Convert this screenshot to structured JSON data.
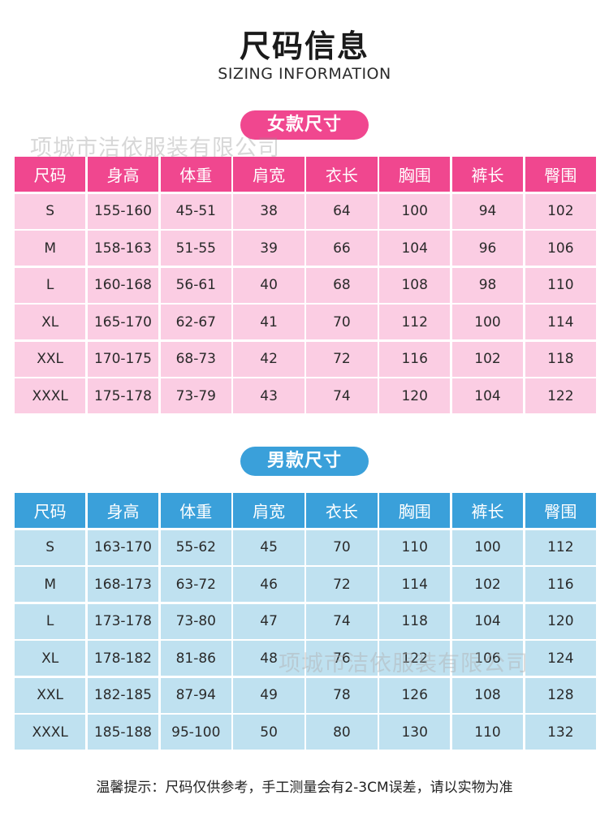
{
  "title": "尺码信息",
  "subtitle": "SIZING INFORMATION",
  "watermark": "项城市洁依服装有限公司",
  "colors": {
    "women_header": "#f0478f",
    "women_body": "#fbcde3",
    "men_header": "#3aa0da",
    "men_body": "#bfe1f0"
  },
  "women": {
    "label": "女款尺寸",
    "headers": [
      "尺码",
      "身高",
      "体重",
      "肩宽",
      "衣长",
      "胸围",
      "裤长",
      "臀围"
    ],
    "rows": [
      [
        "S",
        "155-160",
        "45-51",
        "38",
        "64",
        "100",
        "94",
        "102"
      ],
      [
        "M",
        "158-163",
        "51-55",
        "39",
        "66",
        "104",
        "96",
        "106"
      ],
      [
        "L",
        "160-168",
        "56-61",
        "40",
        "68",
        "108",
        "98",
        "110"
      ],
      [
        "XL",
        "165-170",
        "62-67",
        "41",
        "70",
        "112",
        "100",
        "114"
      ],
      [
        "XXL",
        "170-175",
        "68-73",
        "42",
        "72",
        "116",
        "102",
        "118"
      ],
      [
        "XXXL",
        "175-178",
        "73-79",
        "43",
        "74",
        "120",
        "104",
        "122"
      ]
    ]
  },
  "men": {
    "label": "男款尺寸",
    "headers": [
      "尺码",
      "身高",
      "体重",
      "肩宽",
      "衣长",
      "胸围",
      "裤长",
      "臀围"
    ],
    "rows": [
      [
        "S",
        "163-170",
        "55-62",
        "45",
        "70",
        "110",
        "100",
        "112"
      ],
      [
        "M",
        "168-173",
        "63-72",
        "46",
        "72",
        "114",
        "102",
        "116"
      ],
      [
        "L",
        "173-178",
        "73-80",
        "47",
        "74",
        "118",
        "104",
        "120"
      ],
      [
        "XL",
        "178-182",
        "81-86",
        "48",
        "76",
        "122",
        "106",
        "124"
      ],
      [
        "XXL",
        "182-185",
        "87-94",
        "49",
        "78",
        "126",
        "108",
        "128"
      ],
      [
        "XXXL",
        "185-188",
        "95-100",
        "50",
        "80",
        "130",
        "110",
        "132"
      ]
    ]
  },
  "footer_note": "温馨提示：尺码仅供参考，手工测量会有2-3CM误差，请以实物为准"
}
